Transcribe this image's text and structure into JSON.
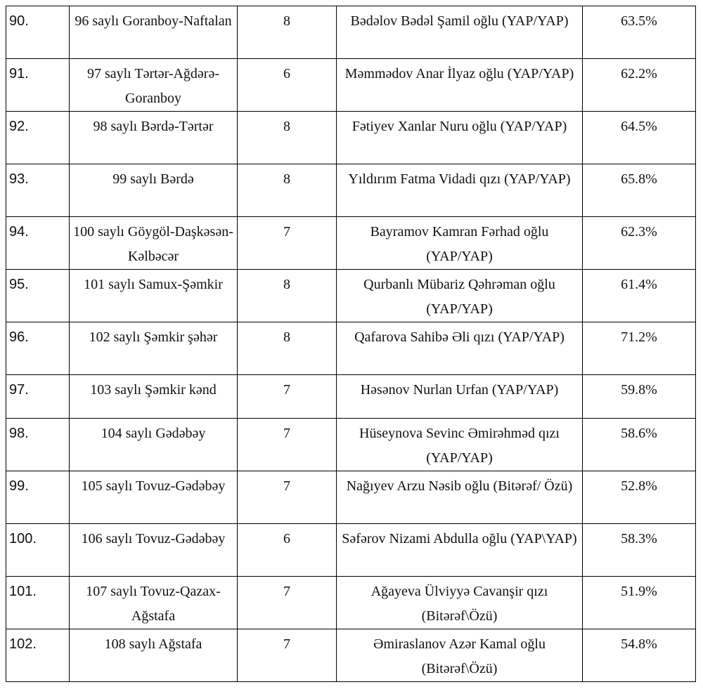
{
  "table": {
    "rows": [
      [
        "90.",
        "96 saylı Goranboy-Naftalan",
        "8",
        "Bədəlov Bədəl Şamil oğlu (YAP/YAP)",
        "63.5%"
      ],
      [
        "91.",
        "97 saylı Tərtər-Ağdərə-Goranboy",
        "6",
        "Məmmədov Anar İlyaz oğlu (YAP/YAP)",
        "62.2%"
      ],
      [
        "92.",
        "98 saylı Bərdə-Tərtər",
        "8",
        "Fətiyev Xanlar Nuru oğlu (YAP/YAP)",
        "64.5%"
      ],
      [
        "93.",
        "99 saylı Bərdə",
        "8",
        "Yıldırım Fatma Vidadi qızı (YAP/YAP)",
        "65.8%"
      ],
      [
        "94.",
        "100 saylı Göygöl-Daşkəsən-Kəlbəcər",
        "7",
        "Bayramov Kamran Fərhad oğlu (YAP/YAP)",
        "62.3%"
      ],
      [
        "95.",
        "101 saylı Samux-Şəmkir",
        "8",
        "Qurbanlı Mübariz Qəhrəman oğlu (YAP/YAP)",
        "61.4%"
      ],
      [
        "96.",
        "102 saylı Şəmkir şəhər",
        "8",
        "Qafarova Sahibə Əli qızı (YAP/YAP)",
        "71.2%"
      ],
      [
        "97.",
        "103 saylı Şəmkir kənd",
        "7",
        "Həsənov Nurlan Urfan (YAP/YAP)",
        "59.8%"
      ],
      [
        "98.",
        "104 saylı Gədəbəy",
        "7",
        "Hüseynova Sevinc Əmirəhməd qızı (YAP/YAP)",
        "58.6%"
      ],
      [
        "99.",
        "105 saylı Tovuz-Gədəbəy",
        "7",
        "Nağıyev Arzu Nəsib oğlu (Bitərəf/ Özü)",
        "52.8%"
      ],
      [
        "100.",
        "106 saylı Tovuz-Gədəbəy",
        "6",
        "Səfərov Nizami Abdulla oğlu (YAP\\YAP)",
        "58.3%"
      ],
      [
        "101.",
        "107 saylı Tovuz-Qazax-Ağstafa",
        "7",
        "Ağayeva Ülviyyə Cavanşir qızı (Bitərəf\\Özü)",
        "51.9%"
      ],
      [
        "102.",
        "108 saylı Ağstafa",
        "7",
        "Əmiraslanov Azər Kamal oğlu (Bitərəf\\Özü)",
        "54.8%"
      ]
    ]
  }
}
